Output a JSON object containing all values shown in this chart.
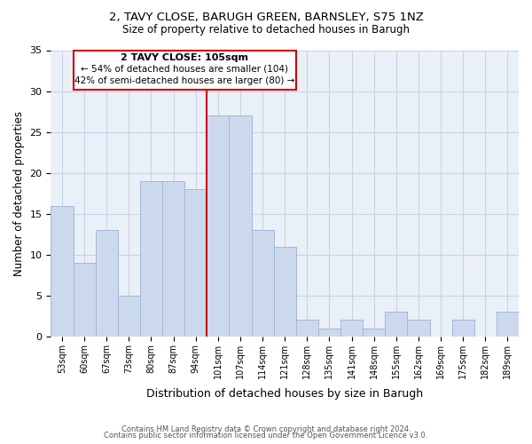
{
  "title1": "2, TAVY CLOSE, BARUGH GREEN, BARNSLEY, S75 1NZ",
  "title2": "Size of property relative to detached houses in Barugh",
  "xlabel": "Distribution of detached houses by size in Barugh",
  "ylabel": "Number of detached properties",
  "categories": [
    "53sqm",
    "60sqm",
    "67sqm",
    "73sqm",
    "80sqm",
    "87sqm",
    "94sqm",
    "101sqm",
    "107sqm",
    "114sqm",
    "121sqm",
    "128sqm",
    "135sqm",
    "141sqm",
    "148sqm",
    "155sqm",
    "162sqm",
    "169sqm",
    "175sqm",
    "182sqm",
    "189sqm"
  ],
  "values": [
    16,
    9,
    13,
    5,
    19,
    19,
    18,
    27,
    27,
    13,
    11,
    2,
    1,
    2,
    1,
    3,
    2,
    0,
    2,
    0,
    3
  ],
  "bar_color": "#ccd9ed",
  "bar_edge_color": "#a0b8d8",
  "property_line_color": "#cc0000",
  "ylim": [
    0,
    35
  ],
  "yticks": [
    0,
    5,
    10,
    15,
    20,
    25,
    30,
    35
  ],
  "annotation_title": "2 TAVY CLOSE: 105sqm",
  "annotation_line1": "← 54% of detached houses are smaller (104)",
  "annotation_line2": "42% of semi-detached houses are larger (80) →",
  "annotation_box_color": "#ffffff",
  "annotation_box_edge": "#cc0000",
  "footer1": "Contains HM Land Registry data © Crown copyright and database right 2024.",
  "footer2": "Contains public sector information licensed under the Open Government Licence v3.0.",
  "background_color": "#ffffff",
  "plot_bg_color": "#eaf0f8",
  "grid_color": "#c8d4e4"
}
